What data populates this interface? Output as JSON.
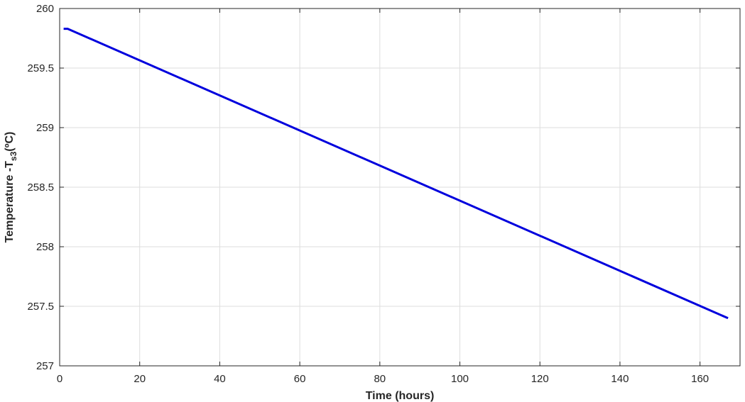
{
  "chart_data": {
    "type": "line",
    "title": "",
    "xlabel": "Time (hours)",
    "ylabel": {
      "prefix": "Temperature -T",
      "subscript": "s3",
      "suffix": "(ºC)"
    },
    "xlim": [
      0,
      170
    ],
    "ylim": [
      257,
      260
    ],
    "xticks": [
      0,
      20,
      40,
      60,
      80,
      100,
      120,
      140,
      160
    ],
    "yticks": [
      257,
      257.5,
      258,
      258.5,
      259,
      259.5,
      260
    ],
    "ytick_labels": [
      "257",
      "257.5",
      "258",
      "258.5",
      "259",
      "259.5",
      "260"
    ],
    "grid": true,
    "series": [
      {
        "color": "#0000dd",
        "x": [
          1,
          2,
          167
        ],
        "y": [
          259.83,
          259.83,
          257.4
        ]
      }
    ]
  }
}
